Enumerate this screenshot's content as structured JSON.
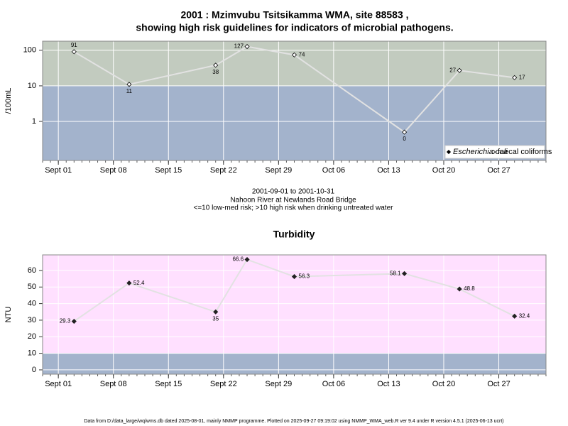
{
  "chart_data": [
    {
      "type": "line",
      "title": [
        "2001 : Mzimvubu Tsitsikamma WMA, site 88583 ,",
        "showing high risk guidelines for indicators of microbial pathogens."
      ],
      "ylabel": "/100mL",
      "x": [
        "2001-09-03",
        "2001-09-10",
        "2001-09-21",
        "2001-09-25",
        "2001-10-01",
        "2001-10-15",
        "2001-10-22",
        "2001-10-29"
      ],
      "series": [
        {
          "name": "Escherichia coli",
          "color": "#000000",
          "marker": "filled",
          "values": [
            null,
            null,
            null,
            null,
            null,
            null,
            null,
            null
          ]
        },
        {
          "name": "faecal coliforms",
          "color": "#000000",
          "marker": "open",
          "values": [
            91,
            11,
            38,
            127,
            74,
            0.5,
            27,
            17
          ],
          "value_labels": [
            "91",
            "11",
            "38",
            "127",
            "74",
            "0",
            "27",
            "17"
          ]
        }
      ],
      "xlim": [
        "2001-08-30",
        "2001-11-02"
      ],
      "xticks": [
        {
          "value": "2001-09-01",
          "label": "Sept 01"
        },
        {
          "value": "2001-09-08",
          "label": "Sept 08"
        },
        {
          "value": "2001-09-15",
          "label": "Sept 15"
        },
        {
          "value": "2001-09-22",
          "label": "Sept 22"
        },
        {
          "value": "2001-09-29",
          "label": "Sept 29"
        },
        {
          "value": "2001-10-06",
          "label": "Oct 06"
        },
        {
          "value": "2001-10-13",
          "label": "Oct 13"
        },
        {
          "value": "2001-10-20",
          "label": "Oct 20"
        },
        {
          "value": "2001-10-27",
          "label": "Oct 27"
        }
      ],
      "ylim": [
        0.08,
        180
      ],
      "yticks": [
        1,
        10,
        100
      ],
      "log_y": true,
      "grid": true,
      "threshold": 10,
      "band_colors": {
        "above": "#c2cbbf",
        "below": "#a3b3cc"
      },
      "line_color": "#e2e2e2",
      "legend": "bottom right"
    },
    {
      "type": "line",
      "title": "Turbidity",
      "ylabel": "NTU",
      "x": [
        "2001-09-03",
        "2001-09-10",
        "2001-09-21",
        "2001-09-25",
        "2001-10-01",
        "2001-10-15",
        "2001-10-22",
        "2001-10-29"
      ],
      "series": [
        {
          "color": "#222222",
          "marker": "filled",
          "values": [
            29.3,
            52.4,
            35,
            66.6,
            56.3,
            58.1,
            48.8,
            32.4
          ]
        }
      ],
      "xlim": [
        "2001-08-30",
        "2001-11-02"
      ],
      "xticks": [
        {
          "value": "2001-09-01",
          "label": "Sept 01"
        },
        {
          "value": "2001-09-08",
          "label": "Sept 08"
        },
        {
          "value": "2001-09-15",
          "label": "Sept 15"
        },
        {
          "value": "2001-09-22",
          "label": "Sept 22"
        },
        {
          "value": "2001-09-29",
          "label": "Sept 29"
        },
        {
          "value": "2001-10-06",
          "label": "Oct 06"
        },
        {
          "value": "2001-10-13",
          "label": "Oct 13"
        },
        {
          "value": "2001-10-20",
          "label": "Oct 20"
        },
        {
          "value": "2001-10-27",
          "label": "Oct 27"
        }
      ],
      "ylim": [
        -2.6,
        69.4
      ],
      "yticks": [
        0,
        10,
        20,
        30,
        40,
        50,
        60
      ],
      "log_y": false,
      "grid": true,
      "threshold": 10,
      "band_colors": {
        "above": "#ffe0ff",
        "below": "#a3b3cc"
      },
      "line_color": "#e2e2e2"
    }
  ],
  "notes": [
    "2001-09-01 to 2001-10-31",
    "Nahoon River at Newlands Road Bridge",
    "<=10 low-med risk; >10 high risk when drinking untreated water"
  ],
  "footer": "Data from D:/data_large/wq/wms.db dated 2025-08-01, mainly NMMP programme. Plotted on 2025-09-27 09:19:02 using NMMP_WMA_web.R ver 9.4 under R version 4.5.1 (2025-06-13 ucrt)"
}
